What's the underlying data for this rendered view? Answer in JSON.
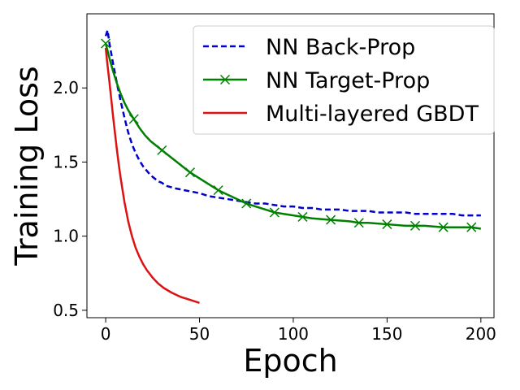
{
  "chart_data": {
    "type": "line",
    "xlabel": "Epoch",
    "ylabel": "Training Loss",
    "xlim": [
      -10,
      207
    ],
    "ylim": [
      0.45,
      2.5
    ],
    "x_ticks": [
      0,
      50,
      100,
      150,
      200
    ],
    "x_tick_labels": [
      "0",
      "50",
      "100",
      "150",
      "200"
    ],
    "y_ticks": [
      0.5,
      1.0,
      1.5,
      2.0
    ],
    "y_tick_labels": [
      "0.5",
      "1.0",
      "1.5",
      "2.0"
    ],
    "grid": false,
    "legend_position": "top-right",
    "series": [
      {
        "name": "NN Back-Prop",
        "color": "#0000cc",
        "style": "dashed",
        "marker": "none",
        "x": [
          0,
          1,
          2,
          4,
          6,
          8,
          10,
          12,
          14,
          16,
          18,
          20,
          22,
          24,
          26,
          28,
          30,
          32,
          35,
          38,
          42,
          46,
          50,
          55,
          60,
          65,
          70,
          75,
          80,
          85,
          90,
          95,
          100,
          105,
          110,
          115,
          120,
          125,
          130,
          135,
          140,
          145,
          150,
          155,
          160,
          165,
          170,
          175,
          180,
          185,
          190,
          195,
          200
        ],
        "y": [
          2.35,
          2.39,
          2.3,
          2.16,
          2.03,
          1.91,
          1.8,
          1.7,
          1.62,
          1.56,
          1.51,
          1.47,
          1.44,
          1.41,
          1.39,
          1.37,
          1.36,
          1.34,
          1.33,
          1.32,
          1.31,
          1.3,
          1.29,
          1.27,
          1.26,
          1.25,
          1.24,
          1.23,
          1.22,
          1.22,
          1.21,
          1.2,
          1.2,
          1.19,
          1.19,
          1.18,
          1.18,
          1.18,
          1.17,
          1.17,
          1.17,
          1.16,
          1.16,
          1.16,
          1.16,
          1.15,
          1.15,
          1.15,
          1.15,
          1.15,
          1.14,
          1.14,
          1.14
        ]
      },
      {
        "name": "NN Target-Prop",
        "color": "#008000",
        "style": "solid",
        "marker": "x",
        "marker_x": [
          0,
          15,
          30,
          45,
          60,
          75,
          90,
          105,
          120,
          135,
          150,
          165,
          180,
          195
        ],
        "x": [
          0,
          2,
          4,
          6,
          8,
          10,
          12,
          15,
          18,
          21,
          24,
          27,
          30,
          35,
          40,
          45,
          50,
          55,
          60,
          65,
          70,
          75,
          80,
          90,
          100,
          105,
          110,
          120,
          130,
          135,
          140,
          150,
          160,
          165,
          170,
          180,
          190,
          195,
          200
        ],
        "y": [
          2.3,
          2.2,
          2.11,
          2.03,
          1.96,
          1.9,
          1.85,
          1.79,
          1.73,
          1.68,
          1.64,
          1.61,
          1.58,
          1.53,
          1.48,
          1.43,
          1.39,
          1.35,
          1.31,
          1.28,
          1.25,
          1.22,
          1.2,
          1.16,
          1.14,
          1.13,
          1.12,
          1.11,
          1.1,
          1.09,
          1.09,
          1.08,
          1.07,
          1.07,
          1.07,
          1.06,
          1.06,
          1.06,
          1.05
        ]
      },
      {
        "name": "Multi-layered GBDT",
        "color": "#dd1111",
        "style": "solid",
        "marker": "none",
        "x": [
          0,
          1,
          2,
          3,
          4,
          5,
          6,
          7,
          8,
          9,
          10,
          12,
          14,
          16,
          18,
          20,
          22,
          25,
          28,
          31,
          35,
          40,
          45,
          50
        ],
        "y": [
          2.27,
          2.15,
          2.04,
          1.92,
          1.8,
          1.69,
          1.58,
          1.48,
          1.39,
          1.31,
          1.23,
          1.1,
          1.0,
          0.92,
          0.86,
          0.81,
          0.77,
          0.72,
          0.68,
          0.65,
          0.62,
          0.59,
          0.57,
          0.55
        ]
      }
    ]
  }
}
